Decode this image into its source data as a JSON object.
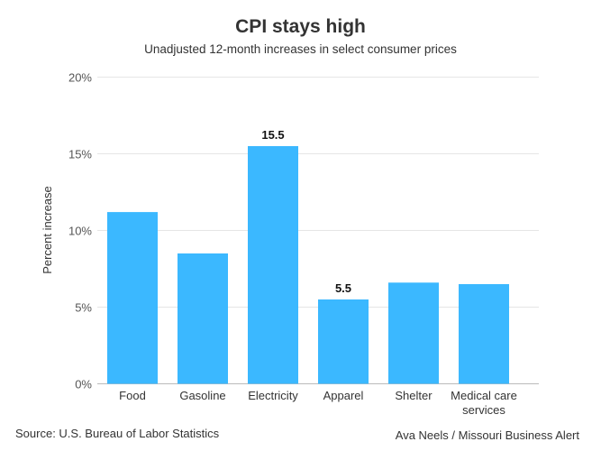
{
  "chart_data": {
    "type": "bar",
    "title": "CPI stays high",
    "subtitle": "Unadjusted 12-month increases in select consumer prices",
    "ylabel": "Percent increase",
    "xlabel": "",
    "categories": [
      "Food",
      "Gasoline",
      "Electricity",
      "Apparel",
      "Shelter",
      "Medical care services"
    ],
    "values": [
      11.2,
      8.5,
      15.5,
      5.5,
      6.6,
      6.5
    ],
    "data_labels": {
      "2": "15.5",
      "3": "5.5"
    },
    "ylim": [
      0,
      20
    ],
    "yticks": [
      0,
      5,
      10,
      15,
      20
    ],
    "ytick_labels": [
      "0%",
      "5%",
      "10%",
      "15%",
      "20%"
    ],
    "grid": true,
    "bar_color": "#3bb8ff",
    "source": "Source: U.S. Bureau of Labor Statistics",
    "credit": "Ava Neels / Missouri Business Alert"
  }
}
